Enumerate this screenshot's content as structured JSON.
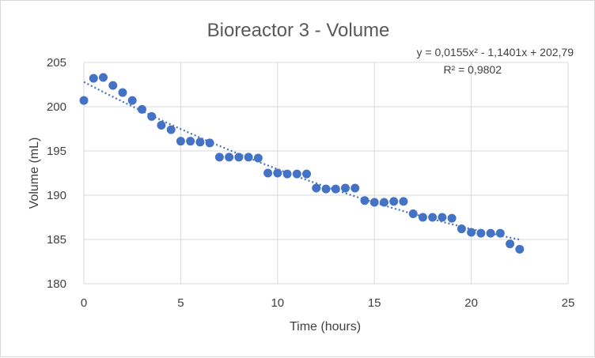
{
  "chart_data": {
    "type": "scatter",
    "title": "Bioreactor 3 - Volume",
    "xlabel": "Time (hours)",
    "ylabel": "Volume (mL)",
    "xlim": [
      0,
      25
    ],
    "ylim": [
      180,
      205
    ],
    "x_ticks": [
      "0",
      "5",
      "10",
      "15",
      "20",
      "25"
    ],
    "y_ticks": [
      "180",
      "185",
      "190",
      "195",
      "200",
      "205"
    ],
    "grid": true,
    "legend": "none",
    "marker_color": "#4472c4",
    "trendline": {
      "type": "polynomial",
      "order": 2,
      "coefficients": [
        0.0155,
        -1.1401,
        202.79
      ],
      "equation_label": "y = 0,0155x² - 1,1401x + 202,79",
      "r2_label": "R² = 0,9802",
      "color": "#4472c4",
      "style": "dotted"
    },
    "series": [
      {
        "x": [
          0,
          0.5,
          1,
          1.5,
          2,
          2.5,
          3,
          3.5,
          4,
          4.5,
          5,
          5.5,
          6,
          6.5,
          7,
          7.5,
          8,
          8.5,
          9,
          9.5,
          10,
          10.5,
          11,
          11.5,
          12,
          12.5,
          13,
          13.5,
          14,
          14.5,
          15,
          15.5,
          16,
          16.5,
          17,
          17.5,
          18,
          18.5,
          19,
          19.5,
          20,
          20.5,
          21,
          21.5,
          22,
          22.5
        ],
        "y": [
          200.7,
          203.2,
          203.3,
          202.4,
          201.6,
          200.7,
          199.7,
          198.9,
          197.9,
          197.4,
          196.1,
          196.1,
          196.0,
          195.9,
          194.3,
          194.3,
          194.3,
          194.3,
          194.2,
          192.5,
          192.5,
          192.4,
          192.4,
          192.4,
          190.8,
          190.7,
          190.7,
          190.8,
          190.8,
          189.4,
          189.2,
          189.2,
          189.3,
          189.3,
          187.9,
          187.5,
          187.5,
          187.5,
          187.4,
          186.2,
          185.8,
          185.7,
          185.7,
          185.7,
          184.5,
          183.9
        ]
      }
    ]
  }
}
